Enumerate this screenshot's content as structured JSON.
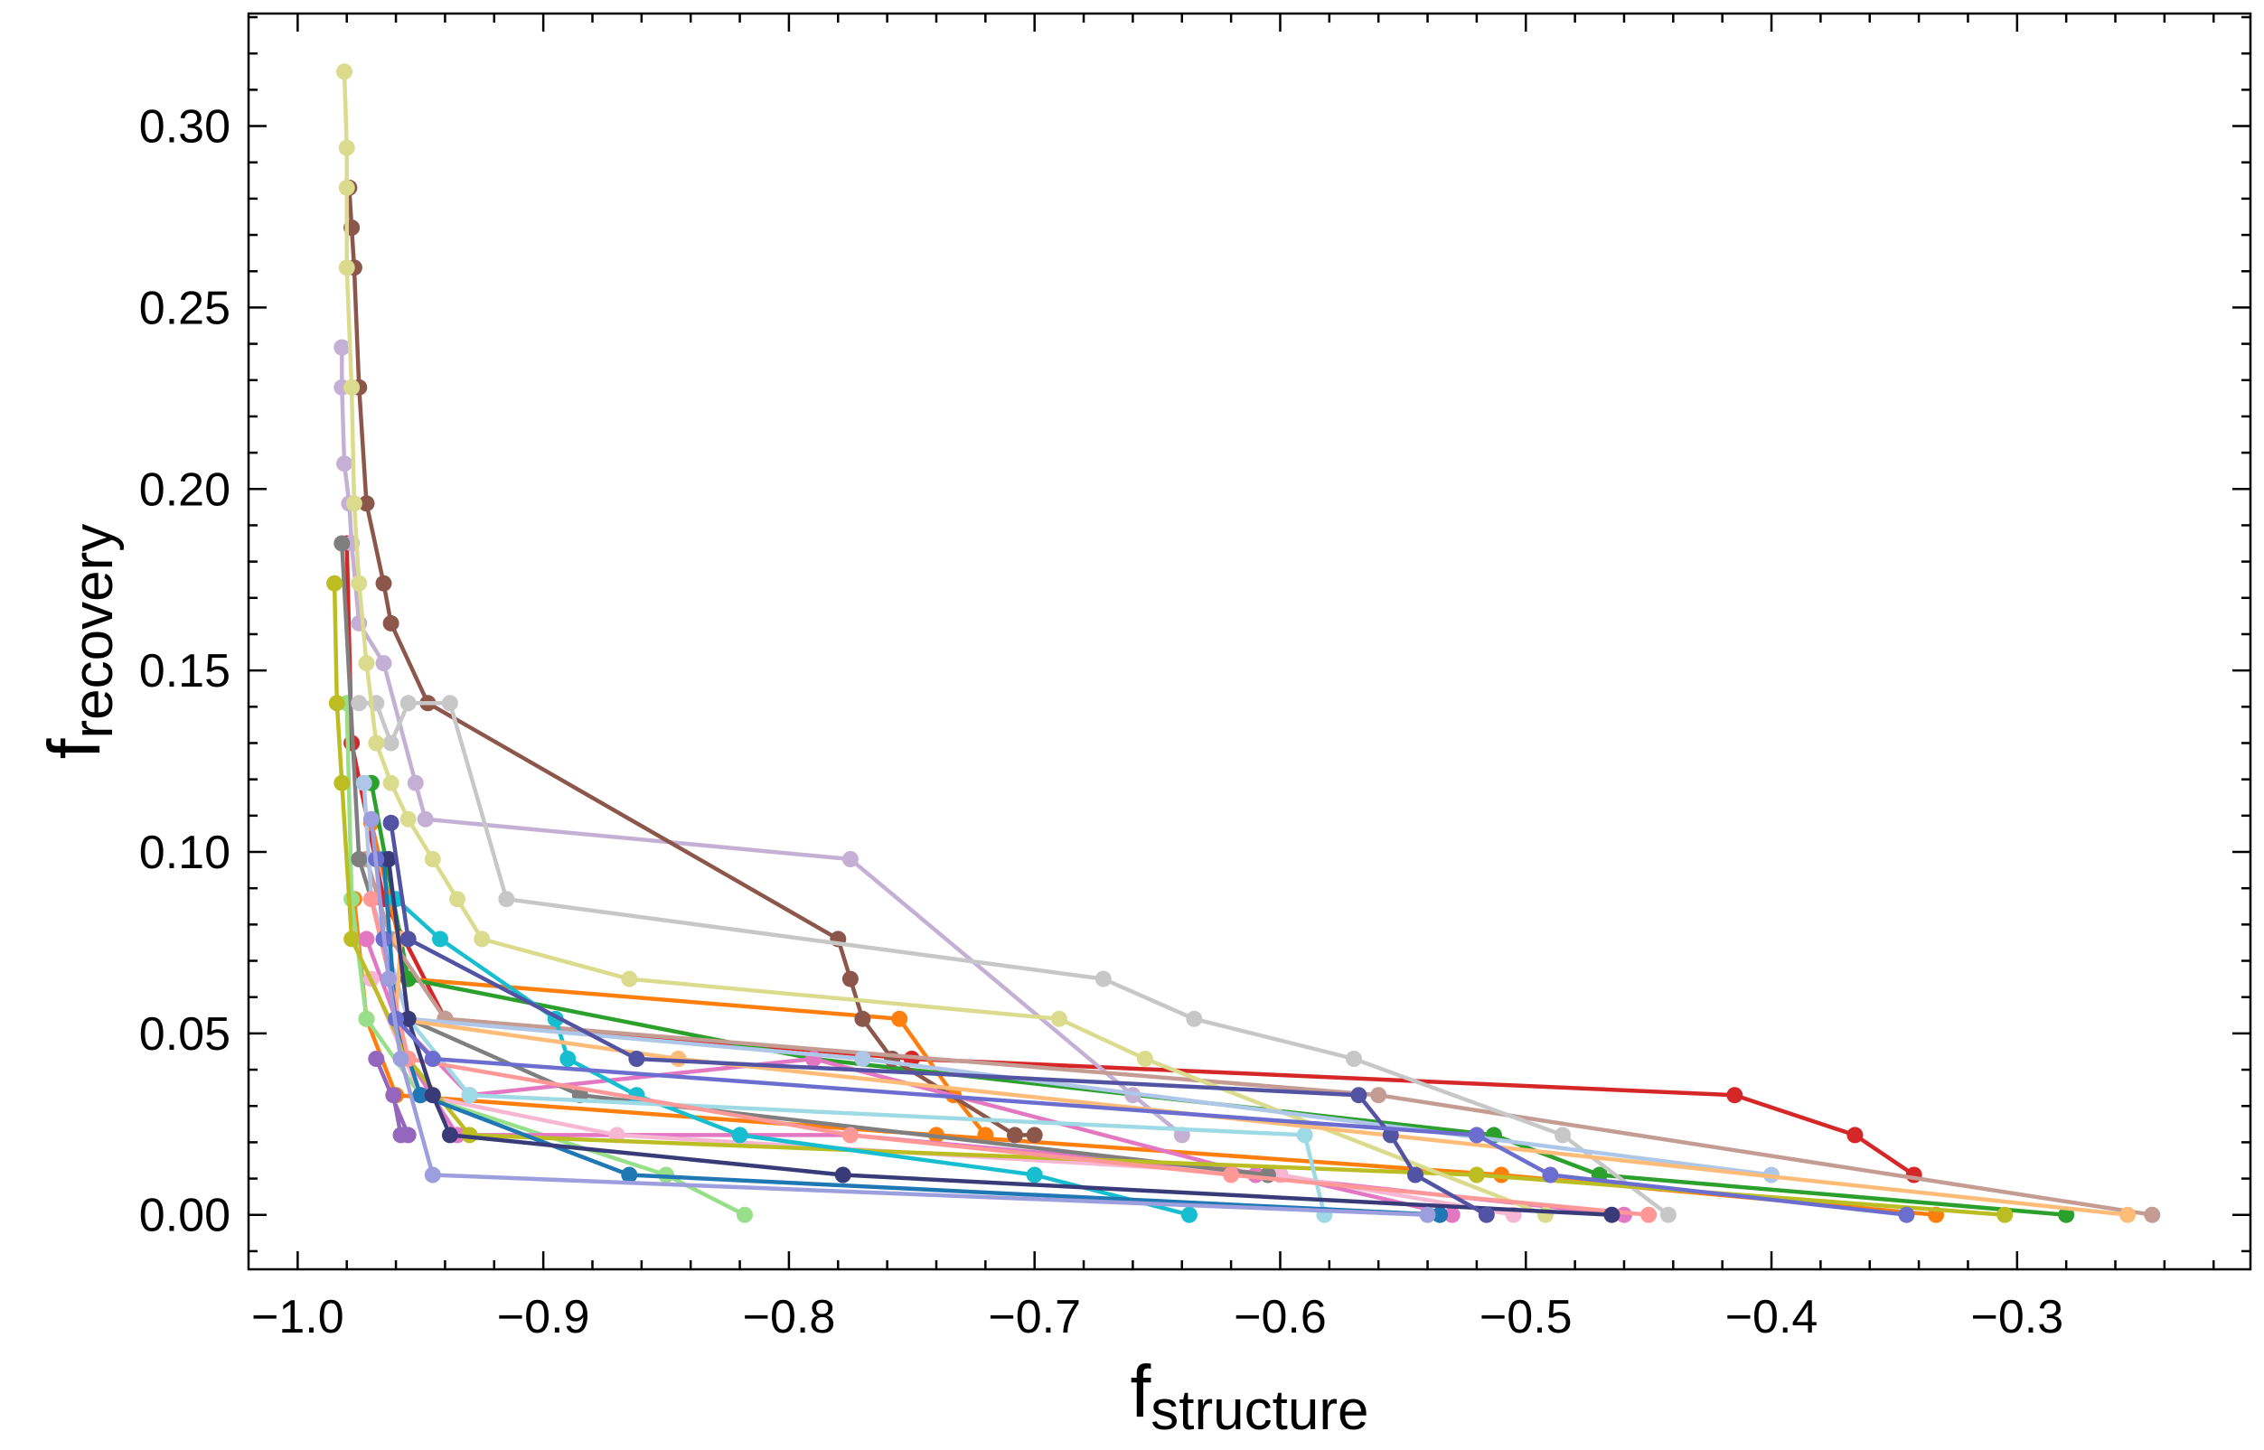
{
  "chart_data": {
    "type": "line",
    "marker": "circle",
    "xlabel": "f",
    "xlabel_sub": "structure",
    "ylabel": "f",
    "ylabel_sub": "recovery",
    "xlim": [
      -1.02,
      -0.205
    ],
    "ylim": [
      -0.015,
      0.331
    ],
    "xticks": [
      -1.0,
      -0.9,
      -0.8,
      -0.7,
      -0.6,
      -0.5,
      -0.4,
      -0.3
    ],
    "xtick_labels": [
      "−1.0",
      "−0.9",
      "−0.8",
      "−0.7",
      "−0.6",
      "−0.5",
      "−0.4",
      "−0.3"
    ],
    "yticks": [
      0.0,
      0.05,
      0.1,
      0.15,
      0.2,
      0.25,
      0.3
    ],
    "ytick_labels": [
      "0.00",
      "0.05",
      "0.10",
      "0.15",
      "0.20",
      "0.25",
      "0.30"
    ],
    "grid": false,
    "legend": "none",
    "series": [
      {
        "color": "#d62728",
        "x": [
          -0.342,
          -0.366,
          -0.415,
          -0.75,
          -0.94,
          -0.965,
          -0.978,
          -0.98
        ],
        "y": [
          0.011,
          0.022,
          0.033,
          0.043,
          0.054,
          0.087,
          0.13,
          0.185
        ]
      },
      {
        "color": "#ff7f0e",
        "x": [
          -0.333,
          -0.51,
          -0.74,
          -0.96,
          -0.972,
          -0.977
        ],
        "y": [
          0.0,
          0.011,
          0.022,
          0.033,
          0.054,
          0.087
        ]
      },
      {
        "color": "#ff7f0e",
        "x": [
          -0.72,
          -0.733,
          -0.755,
          -0.955,
          -0.97
        ],
        "y": [
          0.022,
          0.033,
          0.054,
          0.065,
          0.108
        ]
      },
      {
        "color": "#2ca02c",
        "x": [
          -0.28,
          -0.47,
          -0.513,
          -0.79,
          -0.955,
          -0.97
        ],
        "y": [
          0.0,
          0.011,
          0.022,
          0.043,
          0.065,
          0.119
        ]
      },
      {
        "color": "#98df8a",
        "x": [
          -0.818,
          -0.85,
          -0.95,
          -0.972,
          -0.978,
          -0.98
        ],
        "y": [
          0.0,
          0.011,
          0.033,
          0.054,
          0.087,
          0.141
        ]
      },
      {
        "color": "#9467bd",
        "x": [
          -0.961,
          -0.958,
          -0.955,
          -0.968
        ],
        "y": [
          0.033,
          0.022,
          0.022,
          0.043
        ]
      },
      {
        "color": "#c5b0d5",
        "x": [
          -0.64,
          -0.66,
          -0.775,
          -0.948,
          -0.952,
          -0.965,
          -0.975,
          -0.978,
          -0.979,
          -0.981,
          -0.982,
          -0.982,
          -0.982
        ],
        "y": [
          0.022,
          0.033,
          0.098,
          0.109,
          0.119,
          0.152,
          0.163,
          0.185,
          0.196,
          0.207,
          0.228,
          0.239,
          0.239
        ]
      },
      {
        "color": "#8c564b",
        "x": [
          -0.7,
          -0.708,
          -0.758,
          -0.77,
          -0.775,
          -0.78,
          -0.947,
          -0.962,
          -0.965,
          -0.972,
          -0.975,
          -0.977,
          -0.978,
          -0.979
        ],
        "y": [
          0.022,
          0.022,
          0.043,
          0.054,
          0.065,
          0.076,
          0.141,
          0.163,
          0.174,
          0.196,
          0.228,
          0.261,
          0.272,
          0.283
        ]
      },
      {
        "color": "#c49c94",
        "x": [
          -0.245,
          -0.56,
          -0.94,
          -0.962,
          -0.972
        ],
        "y": [
          0.0,
          0.033,
          0.054,
          0.076,
          0.098
        ]
      },
      {
        "color": "#e377c2",
        "x": [
          -0.46,
          -0.61,
          -0.79,
          -0.93,
          -0.96,
          -0.972
        ],
        "y": [
          0.0,
          0.011,
          0.043,
          0.033,
          0.054,
          0.076
        ]
      },
      {
        "color": "#e377c2",
        "x": [
          -0.53,
          -0.6,
          -0.775,
          -0.935,
          -0.955
        ],
        "y": [
          0.0,
          0.011,
          0.022,
          0.022,
          0.043
        ]
      },
      {
        "color": "#f7b6d2",
        "x": [
          -0.505,
          -0.6,
          -0.87,
          -0.95,
          -0.97
        ],
        "y": [
          0.0,
          0.011,
          0.022,
          0.033,
          0.065
        ]
      },
      {
        "color": "#7f7f7f",
        "x": [
          -0.605,
          -0.885,
          -0.955,
          -0.975,
          -0.982
        ],
        "y": [
          0.011,
          0.033,
          0.054,
          0.098,
          0.185
        ]
      },
      {
        "color": "#c7c7c7",
        "x": [
          -0.442,
          -0.485,
          -0.57,
          -0.635,
          -0.672,
          -0.915,
          -0.938,
          -0.955,
          -0.962,
          -0.968,
          -0.975
        ],
        "y": [
          0.0,
          0.022,
          0.043,
          0.054,
          0.065,
          0.087,
          0.141,
          0.141,
          0.13,
          0.141,
          0.141
        ]
      },
      {
        "color": "#bcbd22",
        "x": [
          -0.305,
          -0.52,
          -0.93,
          -0.955,
          -0.978,
          -0.982,
          -0.984,
          -0.985
        ],
        "y": [
          0.0,
          0.011,
          0.022,
          0.043,
          0.076,
          0.119,
          0.141,
          0.174
        ]
      },
      {
        "color": "#dbdb8d",
        "x": [
          -0.492,
          -0.655,
          -0.69,
          -0.865,
          -0.925,
          -0.935,
          -0.945,
          -0.955,
          -0.962,
          -0.968,
          -0.972,
          -0.975,
          -0.977,
          -0.978,
          -0.98,
          -0.98,
          -0.98,
          -0.981
        ],
        "y": [
          0.0,
          0.043,
          0.054,
          0.065,
          0.076,
          0.087,
          0.098,
          0.109,
          0.119,
          0.13,
          0.152,
          0.174,
          0.196,
          0.228,
          0.261,
          0.283,
          0.294,
          0.315
        ]
      },
      {
        "color": "#17becf",
        "x": [
          -0.637,
          -0.7,
          -0.82,
          -0.862,
          -0.89,
          -0.895,
          -0.942,
          -0.96
        ],
        "y": [
          0.0,
          0.011,
          0.022,
          0.033,
          0.043,
          0.054,
          0.076,
          0.087
        ]
      },
      {
        "color": "#9edae5",
        "x": [
          -0.582,
          -0.59,
          -0.93,
          -0.955
        ],
        "y": [
          0.0,
          0.022,
          0.033,
          0.054
        ]
      },
      {
        "color": "#aec7e8",
        "x": [
          -0.4,
          -0.77,
          -0.955,
          -0.97,
          -0.973
        ],
        "y": [
          0.011,
          0.043,
          0.054,
          0.087,
          0.119
        ]
      },
      {
        "color": "#1f77b4",
        "x": [
          -0.535,
          -0.865,
          -0.95,
          -0.96,
          -0.965
        ],
        "y": [
          0.0,
          0.011,
          0.033,
          0.054,
          0.098
        ]
      },
      {
        "color": "#ffbb78",
        "x": [
          -0.255,
          -0.845,
          -0.96,
          -0.958
        ],
        "y": [
          0.0,
          0.043,
          0.054,
          0.076
        ]
      },
      {
        "color": "#ff9896",
        "x": [
          -0.45,
          -0.62,
          -0.775,
          -0.955,
          -0.97
        ],
        "y": [
          0.0,
          0.011,
          0.022,
          0.043,
          0.087
        ]
      },
      {
        "color": "#393b79",
        "x": [
          -0.465,
          -0.778,
          -0.938,
          -0.945,
          -0.955,
          -0.963
        ],
        "y": [
          0.0,
          0.011,
          0.022,
          0.033,
          0.054,
          0.098
        ]
      },
      {
        "color": "#5254a3",
        "x": [
          -0.516,
          -0.545,
          -0.555,
          -0.568,
          -0.862,
          -0.955,
          -0.962
        ],
        "y": [
          0.0,
          0.011,
          0.022,
          0.033,
          0.043,
          0.076,
          0.108
        ]
      },
      {
        "color": "#6b6ecf",
        "x": [
          -0.345,
          -0.49,
          -0.52,
          -0.945,
          -0.96,
          -0.965,
          -0.968
        ],
        "y": [
          0.0,
          0.011,
          0.022,
          0.043,
          0.054,
          0.076,
          0.098
        ]
      },
      {
        "color": "#9c9ede",
        "x": [
          -0.54,
          -0.945,
          -0.958,
          -0.963,
          -0.97
        ],
        "y": [
          0.0,
          0.011,
          0.043,
          0.065,
          0.109
        ]
      }
    ]
  }
}
